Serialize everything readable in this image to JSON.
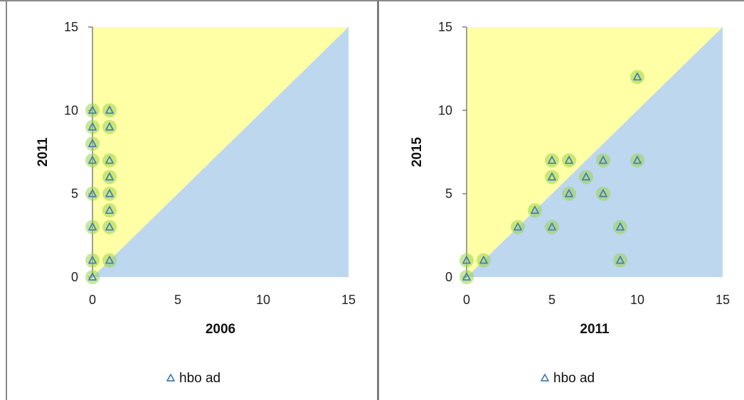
{
  "chart_data": [
    {
      "type": "scatter",
      "title": "",
      "xlabel": "2006",
      "ylabel": "2011",
      "xlim": [
        0,
        15
      ],
      "ylim": [
        0,
        15
      ],
      "xticks": [
        "0",
        "5",
        "10",
        "15"
      ],
      "yticks": [
        "0",
        "5",
        "10",
        "15"
      ],
      "grid": false,
      "legend_position": "bottom",
      "region_colors": {
        "above_diagonal": "#ffffa6",
        "below_diagonal": "#bdd7ee"
      },
      "marker_color": "#4a7fb0",
      "highlight_color": "#9bd34f",
      "series": [
        {
          "name": "hbo ad",
          "points": [
            {
              "x": 0,
              "y": 0
            },
            {
              "x": 0,
              "y": 1
            },
            {
              "x": 0,
              "y": 3
            },
            {
              "x": 0,
              "y": 5
            },
            {
              "x": 0,
              "y": 7
            },
            {
              "x": 0,
              "y": 8
            },
            {
              "x": 0,
              "y": 9
            },
            {
              "x": 0,
              "y": 10
            },
            {
              "x": 1,
              "y": 1
            },
            {
              "x": 1,
              "y": 3
            },
            {
              "x": 1,
              "y": 4
            },
            {
              "x": 1,
              "y": 5
            },
            {
              "x": 1,
              "y": 6
            },
            {
              "x": 1,
              "y": 7
            },
            {
              "x": 1,
              "y": 9
            },
            {
              "x": 1,
              "y": 10
            }
          ]
        }
      ]
    },
    {
      "type": "scatter",
      "title": "",
      "xlabel": "2011",
      "ylabel": "2015",
      "xlim": [
        0,
        15
      ],
      "ylim": [
        0,
        15
      ],
      "xticks": [
        "0",
        "5",
        "10",
        "15"
      ],
      "yticks": [
        "0",
        "5",
        "10",
        "15"
      ],
      "grid": false,
      "legend_position": "bottom",
      "region_colors": {
        "above_diagonal": "#ffffa6",
        "below_diagonal": "#bdd7ee"
      },
      "marker_color": "#4a7fb0",
      "highlight_color": "#9bd34f",
      "series": [
        {
          "name": "hbo ad",
          "points": [
            {
              "x": 0,
              "y": 0
            },
            {
              "x": 0,
              "y": 1
            },
            {
              "x": 1,
              "y": 1
            },
            {
              "x": 3,
              "y": 3
            },
            {
              "x": 4,
              "y": 4
            },
            {
              "x": 5,
              "y": 3
            },
            {
              "x": 5,
              "y": 6
            },
            {
              "x": 5,
              "y": 7
            },
            {
              "x": 6,
              "y": 5
            },
            {
              "x": 6,
              "y": 7
            },
            {
              "x": 7,
              "y": 6
            },
            {
              "x": 8,
              "y": 5
            },
            {
              "x": 8,
              "y": 7
            },
            {
              "x": 9,
              "y": 1
            },
            {
              "x": 9,
              "y": 3
            },
            {
              "x": 10,
              "y": 7
            },
            {
              "x": 10,
              "y": 12
            }
          ]
        }
      ]
    }
  ]
}
